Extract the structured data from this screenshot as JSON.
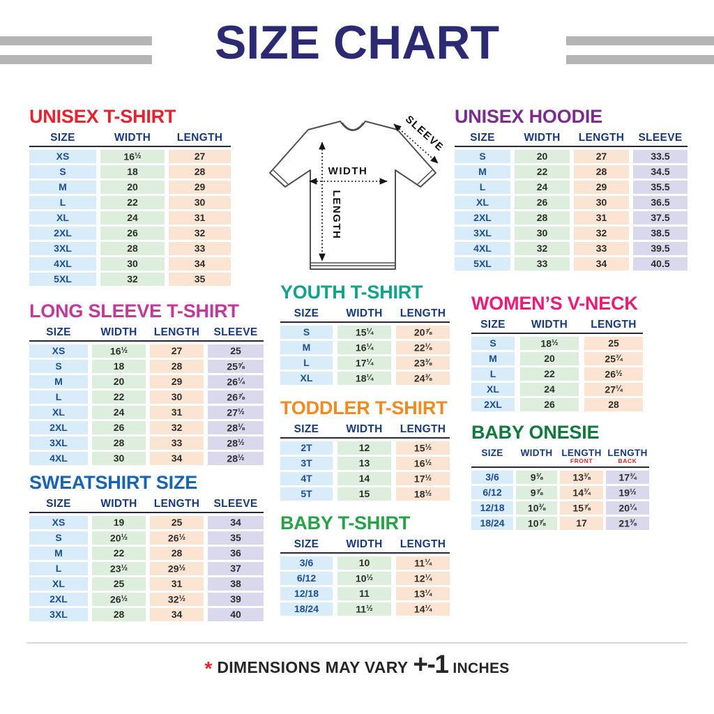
{
  "page": {
    "title": "SIZE CHART",
    "title_color": "#2b2a72"
  },
  "diagram": {
    "width_label": "WIDTH",
    "length_label": "LENGTH",
    "sleeve_label": "SLEEVE"
  },
  "palette": {
    "size_col_bg": "#d9ecfa",
    "width_col_bg": "#ddeedd",
    "length_col_bg": "#fce4d3",
    "sleeve_col_bg": "#d9d8ec",
    "header_text": "#173a7e",
    "size_text": "#1d4b9b",
    "value_text": "#2d2d2d",
    "side_bars": "#b5b5b5",
    "footer_asterisk": "#e8212e"
  },
  "footer": {
    "asterisk": "*",
    "text": "DIMENSIONS MAY VARY",
    "tolerance": "+-1",
    "units": "INCHES"
  },
  "tables": {
    "unisex_tshirt": {
      "title": "UNISEX T-SHIRT",
      "title_color": "#e8212e",
      "columns": [
        {
          "label": "SIZE"
        },
        {
          "label": "WIDTH"
        },
        {
          "label": "LENGTH"
        }
      ],
      "rows": [
        [
          "XS",
          "16½",
          "27"
        ],
        [
          "S",
          "18",
          "28"
        ],
        [
          "M",
          "20",
          "29"
        ],
        [
          "L",
          "22",
          "30"
        ],
        [
          "XL",
          "24",
          "31"
        ],
        [
          "2XL",
          "26",
          "32"
        ],
        [
          "3XL",
          "28",
          "33"
        ],
        [
          "4XL",
          "30",
          "34"
        ],
        [
          "5XL",
          "32",
          "35"
        ]
      ]
    },
    "long_sleeve_tshirt": {
      "title": "LONG SLEEVE T-SHIRT",
      "title_color": "#c2399c",
      "columns": [
        {
          "label": "SIZE"
        },
        {
          "label": "WIDTH"
        },
        {
          "label": "LENGTH"
        },
        {
          "label": "SLEEVE"
        }
      ],
      "rows": [
        [
          "XS",
          "16½",
          "27",
          "25"
        ],
        [
          "S",
          "18",
          "28",
          "25⅝"
        ],
        [
          "M",
          "20",
          "29",
          "26¼"
        ],
        [
          "L",
          "22",
          "30",
          "26⅞"
        ],
        [
          "XL",
          "24",
          "31",
          "27½"
        ],
        [
          "2XL",
          "26",
          "32",
          "28⅛"
        ],
        [
          "3XL",
          "28",
          "33",
          "28½"
        ],
        [
          "4XL",
          "30",
          "34",
          "28½"
        ]
      ]
    },
    "sweatshirt": {
      "title": "SWEATSHIRT SIZE",
      "title_color": "#1565b3",
      "columns": [
        {
          "label": "SIZE"
        },
        {
          "label": "WIDTH"
        },
        {
          "label": "LENGTH"
        },
        {
          "label": "SLEEVE"
        }
      ],
      "rows": [
        [
          "XS",
          "19",
          "25",
          "34"
        ],
        [
          "S",
          "20½",
          "26½",
          "35"
        ],
        [
          "M",
          "22",
          "28",
          "36"
        ],
        [
          "L",
          "23½",
          "29½",
          "37"
        ],
        [
          "XL",
          "25",
          "31",
          "38"
        ],
        [
          "2XL",
          "26½",
          "32½",
          "39"
        ],
        [
          "3XL",
          "28",
          "34",
          "40"
        ]
      ]
    },
    "unisex_hoodie": {
      "title": "UNISEX HOODIE",
      "title_color": "#7b2d8e",
      "columns": [
        {
          "label": "SIZE"
        },
        {
          "label": "WIDTH"
        },
        {
          "label": "LENGTH"
        },
        {
          "label": "SLEEVE"
        }
      ],
      "rows": [
        [
          "S",
          "20",
          "27",
          "33.5"
        ],
        [
          "M",
          "22",
          "28",
          "34.5"
        ],
        [
          "L",
          "24",
          "29",
          "35.5"
        ],
        [
          "XL",
          "26",
          "30",
          "36.5"
        ],
        [
          "2XL",
          "28",
          "31",
          "37.5"
        ],
        [
          "3XL",
          "30",
          "32",
          "38.5"
        ],
        [
          "4XL",
          "32",
          "33",
          "39.5"
        ],
        [
          "5XL",
          "33",
          "34",
          "40.5"
        ]
      ]
    },
    "youth_tshirt": {
      "title": "YOUTH T-SHIRT",
      "title_color": "#11a28b",
      "columns": [
        {
          "label": "SIZE"
        },
        {
          "label": "WIDTH"
        },
        {
          "label": "LENGTH"
        }
      ],
      "rows": [
        [
          "S",
          "15¼",
          "20⅞"
        ],
        [
          "M",
          "16¼",
          "22⅛"
        ],
        [
          "L",
          "17¼",
          "23⅜"
        ],
        [
          "XL",
          "18¼",
          "24⅜"
        ]
      ]
    },
    "womens_vneck": {
      "title": "WOMEN’S V-NECK",
      "title_color": "#ee1a77",
      "columns": [
        {
          "label": "SIZE"
        },
        {
          "label": "WIDTH"
        },
        {
          "label": "LENGTH"
        }
      ],
      "rows": [
        [
          "S",
          "18½",
          "25"
        ],
        [
          "M",
          "20",
          "25¾"
        ],
        [
          "L",
          "22",
          "26½"
        ],
        [
          "XL",
          "24",
          "27¼"
        ],
        [
          "2XL",
          "26",
          "28"
        ]
      ]
    },
    "toddler_tshirt": {
      "title": "TODDLER T-SHIRT",
      "title_color": "#f08a21",
      "columns": [
        {
          "label": "SIZE"
        },
        {
          "label": "WIDTH"
        },
        {
          "label": "LENGTH"
        }
      ],
      "rows": [
        [
          "2T",
          "12",
          "15½"
        ],
        [
          "3T",
          "13",
          "16½"
        ],
        [
          "4T",
          "14",
          "17½"
        ],
        [
          "5T",
          "15",
          "18½"
        ]
      ]
    },
    "baby_onesie": {
      "title": "BABY ONESIE",
      "title_color": "#107a3c",
      "columns": [
        {
          "label": "SIZE"
        },
        {
          "label": "WIDTH"
        },
        {
          "label": "LENGTH",
          "sub": "FRONT"
        },
        {
          "label": "LENGTH",
          "sub": "BACK"
        }
      ],
      "rows": [
        [
          "3/6",
          "9⅜",
          "13⅜",
          "17¾"
        ],
        [
          "6/12",
          "9⅞",
          "14¾",
          "19½"
        ],
        [
          "12/18",
          "10⅜",
          "15⅞",
          "20¼"
        ],
        [
          "18/24",
          "10⅞",
          "17",
          "21⅜"
        ]
      ]
    },
    "baby_tshirt": {
      "title": "BABY T-SHIRT",
      "title_color": "#27a347",
      "columns": [
        {
          "label": "SIZE"
        },
        {
          "label": "WIDTH"
        },
        {
          "label": "LENGTH"
        }
      ],
      "rows": [
        [
          "3/6",
          "10",
          "11¼"
        ],
        [
          "6/12",
          "10½",
          "12¼"
        ],
        [
          "12/18",
          "11",
          "13¼"
        ],
        [
          "18/24",
          "11½",
          "14¼"
        ]
      ]
    }
  }
}
